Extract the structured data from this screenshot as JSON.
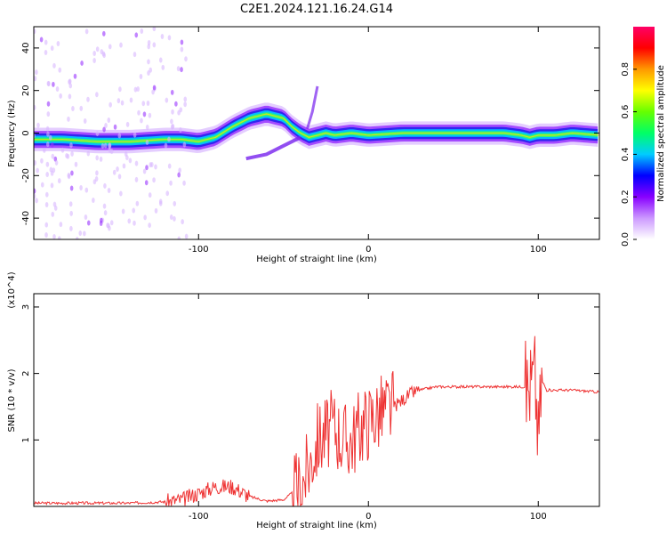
{
  "title": "C2E1.2024.121.16.24.G14",
  "chart_data": [
    {
      "type": "heatmap",
      "xlabel": "Height of straight line (km)",
      "ylabel": "Frequency (Hz)",
      "xlim": [
        -197,
        136
      ],
      "ylim": [
        -50,
        50
      ],
      "xticks": [
        -100,
        0,
        100
      ],
      "xtick_labels": [
        "-100",
        "0",
        "100"
      ],
      "yticks": [
        -40,
        -20,
        0,
        20,
        40
      ],
      "ytick_labels": [
        "-40",
        "-20",
        "0",
        "20",
        "40"
      ],
      "colorbar": {
        "label": "Normalized spectral amplitude",
        "range": [
          0,
          1
        ],
        "ticks": [
          0.0,
          0.2,
          0.4,
          0.6,
          0.8
        ],
        "tick_labels": [
          "0.0",
          "0.2",
          "0.4",
          "0.6",
          "0.8"
        ],
        "colormap": [
          "#ffffff",
          "#cc99ff",
          "#8800ff",
          "#0000ff",
          "#00ccff",
          "#00ff66",
          "#66ff00",
          "#ffff00",
          "#ff9900",
          "#ff0000",
          "#ff0066"
        ]
      },
      "ridge": {
        "x": [
          -197,
          -180,
          -160,
          -140,
          -120,
          -110,
          -100,
          -90,
          -80,
          -70,
          -60,
          -50,
          -45,
          -40,
          -35,
          -30,
          -25,
          -20,
          -10,
          0,
          20,
          40,
          60,
          80,
          90,
          95,
          100,
          110,
          120,
          136
        ],
        "y": [
          -3,
          -3,
          -4,
          -4,
          -3,
          -3,
          -4,
          -2,
          3,
          7,
          9,
          7,
          3,
          0,
          -2,
          -1,
          0,
          -1,
          0,
          -1,
          0,
          0,
          0,
          0,
          -1,
          -2,
          -1,
          -1,
          0,
          -1
        ]
      },
      "grid": false
    },
    {
      "type": "line",
      "xlabel": "Height of straight line (km)",
      "ylabel": "SNR (10 * v/v)",
      "y_multiplier": "(x10^4)",
      "xlim": [
        -197,
        136
      ],
      "ylim": [
        0,
        3.2
      ],
      "xticks": [
        -100,
        0,
        100
      ],
      "xtick_labels": [
        "-100",
        "0",
        "100"
      ],
      "yticks": [
        1,
        2,
        3
      ],
      "ytick_labels": [
        "1",
        "2",
        "3"
      ],
      "color": "#ee3333",
      "series": [
        {
          "x": [
            -197,
            -170,
            -140,
            -120,
            -110,
            -100,
            -90,
            -80,
            -70,
            -60,
            -50,
            -40,
            -35,
            -30,
            -25,
            -20,
            -15,
            -10,
            -5,
            0,
            5,
            10,
            15,
            20,
            25,
            30,
            40,
            50,
            60,
            70,
            80,
            90,
            95,
            98,
            100,
            102,
            105,
            110,
            120,
            136
          ],
          "y": [
            0.05,
            0.05,
            0.05,
            0.07,
            0.1,
            0.2,
            0.3,
            0.3,
            0.15,
            0.08,
            0.1,
            0.3,
            0.6,
            1.0,
            1.1,
            1.2,
            1.0,
            1.0,
            1.2,
            1.3,
            1.4,
            1.45,
            1.5,
            1.6,
            1.7,
            1.75,
            1.8,
            1.8,
            1.8,
            1.8,
            1.8,
            1.8,
            1.8,
            2.0,
            1.0,
            1.9,
            1.75,
            1.75,
            1.75,
            1.72
          ]
        }
      ],
      "grid": false
    }
  ]
}
